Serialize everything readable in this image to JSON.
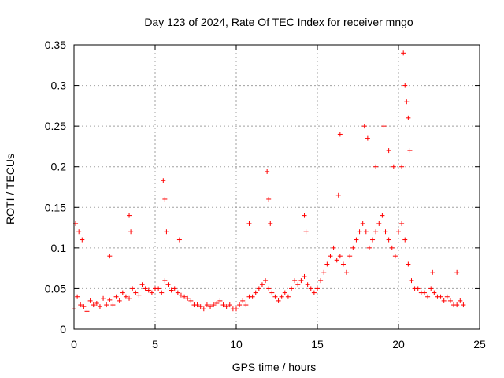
{
  "chart_data": {
    "type": "scatter",
    "title": "Day 123 of 2024, Rate Of TEC Index for receiver mngo",
    "xlabel": "GPS time / hours",
    "ylabel": "ROTI / TECUs",
    "xlim": [
      0,
      25
    ],
    "ylim": [
      0,
      0.35
    ],
    "xticks": [
      0,
      5,
      10,
      15,
      20,
      25
    ],
    "xtick_labels": [
      "0",
      "5",
      "10",
      "15",
      "20",
      "25"
    ],
    "yticks": [
      0,
      0.05,
      0.1,
      0.15,
      0.2,
      0.25,
      0.3,
      0.35
    ],
    "ytick_labels": [
      "0",
      "0.05",
      "0.1",
      "0.15",
      "0.2",
      "0.25",
      "0.3",
      "0.35"
    ],
    "grid": true,
    "marker": "+",
    "series": [
      {
        "name": "ROTI",
        "color": "#ff0000",
        "x": [
          0.0,
          0.2,
          0.4,
          0.6,
          0.8,
          1.0,
          1.2,
          1.4,
          1.6,
          1.8,
          2.0,
          2.2,
          2.4,
          2.6,
          2.8,
          3.0,
          3.2,
          3.4,
          3.6,
          3.8,
          4.0,
          4.2,
          4.4,
          4.6,
          4.8,
          5.0,
          5.2,
          5.4,
          5.6,
          5.8,
          6.0,
          6.2,
          6.4,
          6.6,
          6.8,
          7.0,
          7.2,
          7.4,
          7.6,
          7.8,
          8.0,
          8.2,
          8.4,
          8.6,
          8.8,
          9.0,
          9.2,
          9.4,
          9.6,
          9.8,
          10.0,
          10.2,
          10.4,
          10.6,
          10.8,
          11.0,
          11.2,
          11.4,
          11.6,
          11.8,
          12.0,
          12.2,
          12.4,
          12.6,
          12.8,
          13.0,
          13.2,
          13.4,
          13.6,
          13.8,
          14.0,
          14.2,
          14.4,
          14.6,
          14.8,
          15.0,
          15.2,
          15.4,
          15.6,
          15.8,
          16.0,
          16.2,
          16.4,
          16.6,
          16.8,
          17.0,
          17.2,
          17.4,
          17.6,
          17.8,
          18.0,
          18.2,
          18.4,
          18.6,
          18.8,
          19.0,
          19.2,
          19.4,
          19.6,
          19.8,
          20.0,
          20.2,
          20.4,
          20.6,
          20.8,
          21.0,
          21.2,
          21.4,
          21.6,
          21.8,
          22.0,
          22.2,
          22.4,
          22.6,
          22.8,
          23.0,
          23.2,
          23.4,
          23.6,
          23.8,
          24.0,
          0.1,
          0.3,
          0.5,
          2.2,
          3.4,
          3.5,
          5.5,
          5.6,
          5.7,
          6.5,
          10.8,
          11.9,
          12.0,
          12.1,
          14.2,
          14.3,
          16.3,
          16.4,
          17.9,
          18.1,
          18.6,
          19.1,
          19.4,
          19.7,
          20.2,
          20.3,
          20.4,
          20.5,
          20.6,
          20.7,
          22.1,
          23.6
        ],
        "y": [
          0.025,
          0.04,
          0.03,
          0.028,
          0.022,
          0.035,
          0.03,
          0.032,
          0.028,
          0.038,
          0.03,
          0.036,
          0.03,
          0.04,
          0.035,
          0.045,
          0.04,
          0.038,
          0.05,
          0.045,
          0.042,
          0.055,
          0.05,
          0.048,
          0.045,
          0.05,
          0.05,
          0.045,
          0.06,
          0.055,
          0.048,
          0.05,
          0.045,
          0.042,
          0.04,
          0.038,
          0.035,
          0.03,
          0.03,
          0.028,
          0.025,
          0.03,
          0.028,
          0.03,
          0.032,
          0.035,
          0.03,
          0.028,
          0.03,
          0.025,
          0.025,
          0.03,
          0.035,
          0.03,
          0.04,
          0.04,
          0.045,
          0.05,
          0.055,
          0.06,
          0.05,
          0.045,
          0.04,
          0.035,
          0.04,
          0.045,
          0.04,
          0.05,
          0.06,
          0.055,
          0.06,
          0.065,
          0.055,
          0.05,
          0.045,
          0.05,
          0.06,
          0.07,
          0.08,
          0.09,
          0.1,
          0.085,
          0.09,
          0.08,
          0.07,
          0.09,
          0.1,
          0.11,
          0.12,
          0.13,
          0.12,
          0.1,
          0.11,
          0.12,
          0.13,
          0.14,
          0.12,
          0.11,
          0.1,
          0.09,
          0.12,
          0.13,
          0.11,
          0.08,
          0.06,
          0.05,
          0.05,
          0.045,
          0.045,
          0.04,
          0.05,
          0.045,
          0.04,
          0.04,
          0.035,
          0.04,
          0.035,
          0.03,
          0.03,
          0.035,
          0.03,
          0.13,
          0.12,
          0.11,
          0.09,
          0.14,
          0.12,
          0.183,
          0.16,
          0.12,
          0.11,
          0.13,
          0.194,
          0.16,
          0.13,
          0.14,
          0.12,
          0.165,
          0.24,
          0.25,
          0.235,
          0.2,
          0.25,
          0.22,
          0.2,
          0.2,
          0.34,
          0.3,
          0.28,
          0.26,
          0.22,
          0.07,
          0.07
        ]
      }
    ]
  }
}
